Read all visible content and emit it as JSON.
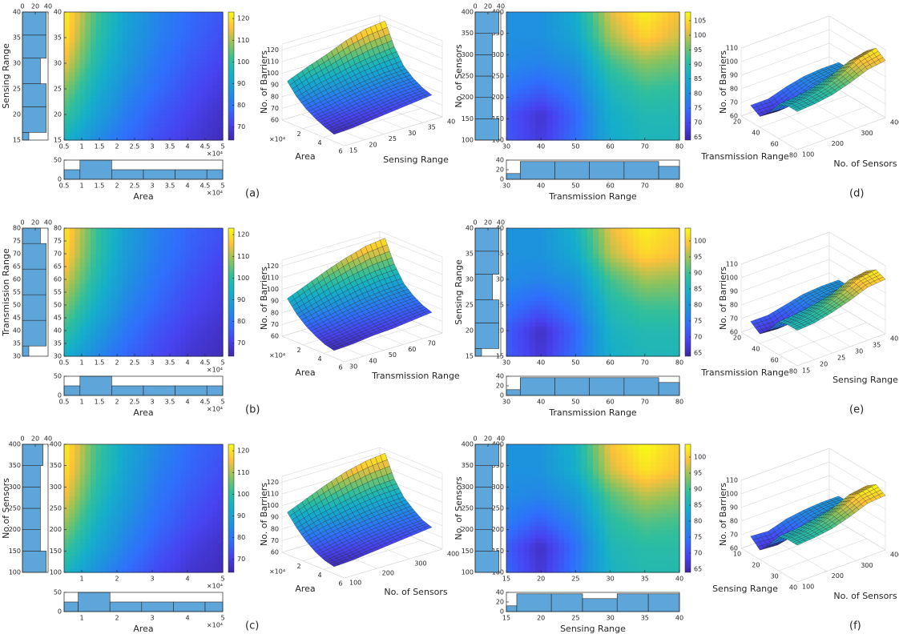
{
  "chart_data": [
    {
      "type": "heatmap",
      "label": "(a)",
      "xlabel": "Area",
      "ylabel": "Sensing Range",
      "x_exponent": "×10⁴",
      "x": [
        5000,
        14000,
        23000,
        32000,
        41000,
        50000
      ],
      "y": [
        15,
        20,
        25,
        30,
        35,
        40
      ],
      "z": [
        [
          95,
          85,
          78,
          73,
          69,
          66
        ],
        [
          102,
          90,
          81,
          75,
          71,
          67
        ],
        [
          108,
          94,
          84,
          78,
          73,
          69
        ],
        [
          115,
          98,
          87,
          80,
          75,
          71
        ],
        [
          120,
          101,
          89,
          82,
          77,
          73
        ],
        [
          122,
          103,
          90,
          83,
          78,
          75
        ]
      ],
      "xlim": [
        5000,
        50000
      ],
      "xticks": [
        {
          "value": 5000,
          "label": "0.5"
        },
        {
          "value": 10000,
          "label": "1"
        },
        {
          "value": 15000,
          "label": "1.5"
        },
        {
          "value": 20000,
          "label": "2"
        },
        {
          "value": 25000,
          "label": "2.5"
        },
        {
          "value": 30000,
          "label": "3"
        },
        {
          "value": 35000,
          "label": "3.5"
        },
        {
          "value": 40000,
          "label": "4"
        },
        {
          "value": 45000,
          "label": "4.5"
        },
        {
          "value": 50000,
          "label": "5"
        }
      ],
      "ylim": [
        15,
        40
      ],
      "yticks": [
        15,
        20,
        25,
        30,
        35,
        40
      ],
      "clim": [
        64,
        123
      ],
      "cticks": [
        70,
        80,
        90,
        100,
        110,
        120
      ],
      "x_hist": {
        "bins": [
          5000,
          9500,
          18500,
          27500,
          36500,
          45500,
          50000
        ],
        "counts": [
          25,
          50,
          25,
          25,
          25,
          25
        ],
        "ylim": [
          0,
          50
        ],
        "yticks": [
          0,
          50
        ]
      },
      "y_hist": {
        "bins": [
          15,
          16.5,
          21.5,
          26,
          31,
          35.5,
          40
        ],
        "counts": [
          10,
          37,
          37,
          28,
          37,
          37
        ],
        "xlim": [
          0,
          40
        ],
        "xticks": [
          0,
          20,
          40
        ]
      },
      "surface": {
        "type": "surface",
        "xlabel": "Area",
        "ylabel": "Sensing Range",
        "zlabel": "No. of Barriers",
        "xlim": [
          0,
          60000
        ],
        "xticks": [
          {
            "value": 20000,
            "label": "2"
          },
          {
            "value": 40000,
            "label": "4"
          },
          {
            "value": 60000,
            "label": "6"
          }
        ],
        "ylim": [
          15,
          40
        ],
        "yticks": [
          15,
          20,
          25,
          30,
          35,
          40
        ],
        "zlim": [
          60,
          125
        ],
        "zticks": [
          60,
          70,
          80,
          90,
          100,
          110,
          120
        ]
      }
    },
    {
      "type": "heatmap",
      "label": "(b)",
      "xlabel": "Area",
      "ylabel": "Transmission Range",
      "x_exponent": "×10⁴",
      "x": [
        5000,
        14000,
        23000,
        32000,
        41000,
        50000
      ],
      "y": [
        30,
        40,
        50,
        60,
        70,
        80
      ],
      "z": [
        [
          94,
          84,
          77,
          72,
          68,
          66
        ],
        [
          101,
          89,
          80,
          74,
          70,
          67
        ],
        [
          108,
          94,
          83,
          77,
          72,
          69
        ],
        [
          114,
          98,
          86,
          79,
          74,
          70
        ],
        [
          119,
          101,
          88,
          81,
          76,
          72
        ],
        [
          121,
          102,
          89,
          82,
          77,
          74
        ]
      ],
      "xlim": [
        5000,
        50000
      ],
      "xticks": [
        {
          "value": 5000,
          "label": "0.5"
        },
        {
          "value": 10000,
          "label": "1"
        },
        {
          "value": 15000,
          "label": "1.5"
        },
        {
          "value": 20000,
          "label": "2"
        },
        {
          "value": 25000,
          "label": "2.5"
        },
        {
          "value": 30000,
          "label": "3"
        },
        {
          "value": 35000,
          "label": "3.5"
        },
        {
          "value": 40000,
          "label": "4"
        },
        {
          "value": 45000,
          "label": "4.5"
        },
        {
          "value": 50000,
          "label": "5"
        }
      ],
      "ylim": [
        30,
        80
      ],
      "yticks": [
        30,
        35,
        40,
        45,
        50,
        55,
        60,
        65,
        70,
        75,
        80
      ],
      "clim": [
        64,
        123
      ],
      "cticks": [
        70,
        80,
        90,
        100,
        110,
        120
      ],
      "x_hist": {
        "bins": [
          5000,
          9500,
          18500,
          27500,
          36500,
          45500,
          50000
        ],
        "counts": [
          25,
          50,
          25,
          25,
          25,
          25
        ],
        "ylim": [
          0,
          50
        ],
        "yticks": [
          0,
          50
        ]
      },
      "y_hist": {
        "bins": [
          30,
          34,
          44,
          54,
          64,
          74,
          80
        ],
        "counts": [
          10,
          37,
          37,
          37,
          37,
          28
        ],
        "xlim": [
          0,
          40
        ],
        "xticks": [
          0,
          20,
          40
        ]
      },
      "surface": {
        "type": "surface",
        "xlabel": "Area",
        "ylabel": "Transmission Range",
        "zlabel": "No. of Barriers",
        "xlim": [
          0,
          60000
        ],
        "xticks": [
          {
            "value": 20000,
            "label": "2"
          },
          {
            "value": 40000,
            "label": "4"
          },
          {
            "value": 60000,
            "label": "6"
          }
        ],
        "ylim": [
          30,
          80
        ],
        "yticks": [
          30,
          40,
          50,
          60,
          70
        ],
        "zlim": [
          60,
          125
        ],
        "zticks": [
          60,
          70,
          80,
          90,
          100,
          110,
          120
        ]
      }
    },
    {
      "type": "heatmap",
      "label": "(c)",
      "xlabel": "Area",
      "ylabel": "No.of Sensors",
      "x_exponent": "×10⁴",
      "x": [
        5000,
        14000,
        23000,
        32000,
        41000,
        50000
      ],
      "y": [
        100,
        160,
        220,
        280,
        340,
        400
      ],
      "z": [
        [
          96,
          86,
          78,
          72,
          68,
          66
        ],
        [
          103,
          91,
          82,
          75,
          70,
          67
        ],
        [
          110,
          95,
          85,
          78,
          73,
          69
        ],
        [
          116,
          99,
          88,
          80,
          75,
          71
        ],
        [
          120,
          102,
          90,
          82,
          77,
          73
        ],
        [
          122,
          103,
          91,
          84,
          78,
          75
        ]
      ],
      "xlim": [
        5000,
        50000
      ],
      "xticks": [
        {
          "value": 10000,
          "label": "1"
        },
        {
          "value": 20000,
          "label": "2"
        },
        {
          "value": 30000,
          "label": "3"
        },
        {
          "value": 40000,
          "label": "4"
        },
        {
          "value": 50000,
          "label": "5"
        }
      ],
      "ylim": [
        100,
        400
      ],
      "yticks": [
        100,
        150,
        200,
        250,
        300,
        350,
        400
      ],
      "clim": [
        64,
        123
      ],
      "cticks": [
        70,
        80,
        90,
        100,
        110,
        120
      ],
      "x_hist": {
        "bins": [
          5000,
          9000,
          18000,
          27000,
          36000,
          45000,
          50000
        ],
        "counts": [
          25,
          50,
          25,
          25,
          25,
          25
        ],
        "ylim": [
          0,
          50
        ],
        "yticks": [
          0,
          50
        ]
      },
      "y_hist": {
        "bins": [
          100,
          150,
          200,
          250,
          300,
          350,
          400
        ],
        "counts": [
          37,
          28,
          28,
          28,
          28,
          32
        ],
        "xlim": [
          0,
          40
        ],
        "xticks": [
          0,
          20,
          40
        ]
      },
      "surface": {
        "type": "surface",
        "xlabel": "Area",
        "ylabel": "No. of Sensors",
        "zlabel": "No. of Barriers",
        "xlim": [
          0,
          60000
        ],
        "xticks": [
          {
            "value": 20000,
            "label": "2"
          },
          {
            "value": 40000,
            "label": "4"
          },
          {
            "value": 60000,
            "label": "6"
          }
        ],
        "ylim": [
          100,
          400
        ],
        "yticks": [
          100,
          200,
          300,
          400
        ],
        "zlim": [
          60,
          125
        ],
        "zticks": [
          60,
          70,
          80,
          90,
          100,
          110,
          120
        ]
      }
    },
    {
      "type": "heatmap",
      "label": "(d)",
      "xlabel": "Transmission Range",
      "ylabel": "No. of Sensors",
      "x": [
        30,
        40,
        50,
        60,
        70,
        80
      ],
      "y": [
        100,
        160,
        220,
        280,
        340,
        400
      ],
      "z": [
        [
          72,
          68,
          75,
          85,
          88,
          88
        ],
        [
          72,
          67,
          74,
          86,
          89,
          89
        ],
        [
          76,
          73,
          77,
          88,
          92,
          91
        ],
        [
          79,
          78,
          80,
          92,
          97,
          95
        ],
        [
          80,
          80,
          84,
          98,
          104,
          100
        ],
        [
          80,
          80,
          86,
          101,
          107,
          102
        ]
      ],
      "xlim": [
        30,
        80
      ],
      "xticks": [
        30,
        40,
        50,
        60,
        70,
        80
      ],
      "ylim": [
        100,
        400
      ],
      "yticks": [
        100,
        150,
        200,
        250,
        300,
        350,
        400
      ],
      "clim": [
        64,
        108
      ],
      "cticks": [
        65,
        70,
        75,
        80,
        85,
        90,
        95,
        100,
        105
      ],
      "x_hist": {
        "bins": [
          30,
          34,
          44,
          54,
          64,
          74,
          80
        ],
        "counts": [
          12,
          37,
          37,
          37,
          37,
          27
        ],
        "ylim": [
          0,
          40
        ],
        "yticks": [
          0,
          20,
          40
        ]
      },
      "y_hist": {
        "bins": [
          100,
          150,
          200,
          250,
          300,
          350,
          400
        ],
        "counts": [
          37,
          27,
          27,
          27,
          27,
          37
        ],
        "xlim": [
          0,
          40
        ],
        "xticks": [
          0,
          20,
          40
        ]
      },
      "surface": {
        "type": "surface",
        "xlabel": "Transmission Range",
        "ylabel": "No. of Sensors",
        "zlabel": "No. of Barriers",
        "xlim": [
          20,
          80
        ],
        "xticks": [
          20,
          40,
          60,
          80
        ],
        "ylim": [
          100,
          400
        ],
        "yticks": [
          100,
          200,
          300,
          400
        ],
        "zlim": [
          60,
          110
        ],
        "zticks": [
          60,
          70,
          80,
          90,
          100,
          110
        ]
      }
    },
    {
      "type": "heatmap",
      "label": "(e)",
      "xlabel": "Transmission Range",
      "ylabel": "Sensing Range",
      "x": [
        30,
        40,
        50,
        60,
        70,
        80
      ],
      "y": [
        15,
        20,
        25,
        30,
        35,
        40
      ],
      "z": [
        [
          72,
          67,
          74,
          84,
          86,
          86
        ],
        [
          72,
          66,
          73,
          85,
          87,
          87
        ],
        [
          75,
          72,
          76,
          87,
          90,
          90
        ],
        [
          78,
          77,
          79,
          90,
          95,
          94
        ],
        [
          79,
          79,
          83,
          96,
          101,
          99
        ],
        [
          79,
          79,
          85,
          98,
          103,
          100
        ]
      ],
      "xlim": [
        30,
        80
      ],
      "xticks": [
        30,
        40,
        50,
        60,
        70,
        80
      ],
      "ylim": [
        15,
        40
      ],
      "yticks": [
        15,
        20,
        25,
        30,
        35,
        40
      ],
      "clim": [
        64,
        104
      ],
      "cticks": [
        65,
        70,
        75,
        80,
        85,
        90,
        95,
        100
      ],
      "x_hist": {
        "bins": [
          30,
          34,
          44,
          54,
          64,
          74,
          80
        ],
        "counts": [
          12,
          37,
          37,
          37,
          37,
          27
        ],
        "ylim": [
          0,
          40
        ],
        "yticks": [
          0,
          20,
          40
        ]
      },
      "y_hist": {
        "bins": [
          15,
          16.5,
          21.5,
          26,
          31,
          35.5,
          40
        ],
        "counts": [
          10,
          37,
          37,
          27,
          37,
          37
        ],
        "xlim": [
          0,
          40
        ],
        "xticks": [
          0,
          20,
          40
        ]
      },
      "surface": {
        "type": "surface",
        "xlabel": "Transmission Range",
        "ylabel": "Sensing Range",
        "zlabel": "No. of Barriers",
        "xlim": [
          20,
          80
        ],
        "xticks": [
          20,
          40,
          60,
          80
        ],
        "ylim": [
          15,
          40
        ],
        "yticks": [
          15,
          20,
          25,
          30,
          35,
          40
        ],
        "zlim": [
          60,
          110
        ],
        "zticks": [
          60,
          70,
          80,
          90,
          100,
          110
        ]
      }
    },
    {
      "type": "heatmap",
      "label": "(f)",
      "xlabel": "Sensing Range",
      "ylabel": "No. of Sensors",
      "x": [
        15,
        20,
        25,
        30,
        35,
        40
      ],
      "y": [
        100,
        160,
        220,
        280,
        340,
        400
      ],
      "z": [
        [
          73,
          67,
          75,
          85,
          87,
          87
        ],
        [
          72,
          66,
          74,
          86,
          88,
          88
        ],
        [
          76,
          72,
          77,
          88,
          91,
          90
        ],
        [
          78,
          77,
          80,
          91,
          96,
          94
        ],
        [
          79,
          79,
          84,
          97,
          102,
          99
        ],
        [
          79,
          79,
          85,
          99,
          104,
          100
        ]
      ],
      "xlim": [
        15,
        40
      ],
      "xticks": [
        15,
        20,
        25,
        30,
        35,
        40
      ],
      "ylim": [
        100,
        400
      ],
      "yticks": [
        100,
        150,
        200,
        250,
        300,
        350,
        400
      ],
      "clim": [
        64,
        104
      ],
      "cticks": [
        65,
        70,
        75,
        80,
        85,
        90,
        95,
        100
      ],
      "x_hist": {
        "bins": [
          15,
          16.5,
          21.5,
          26,
          31,
          35.5,
          40
        ],
        "counts": [
          12,
          37,
          37,
          27,
          37,
          37
        ],
        "ylim": [
          0,
          40
        ],
        "yticks": [
          0,
          20,
          40
        ]
      },
      "y_hist": {
        "bins": [
          100,
          150,
          200,
          250,
          300,
          350,
          400
        ],
        "counts": [
          37,
          27,
          27,
          27,
          27,
          37
        ],
        "xlim": [
          0,
          40
        ],
        "xticks": [
          0,
          20,
          40
        ]
      },
      "surface": {
        "type": "surface",
        "xlabel": "Sensing Range",
        "ylabel": "No. of Sensors",
        "zlabel": "No. of Barriers",
        "xlim": [
          10,
          40
        ],
        "xticks": [
          10,
          20,
          30,
          40
        ],
        "ylim": [
          100,
          400
        ],
        "yticks": [
          100,
          200,
          300,
          400
        ],
        "zlim": [
          60,
          110
        ],
        "zticks": [
          60,
          70,
          80,
          90,
          100,
          110
        ]
      }
    }
  ]
}
